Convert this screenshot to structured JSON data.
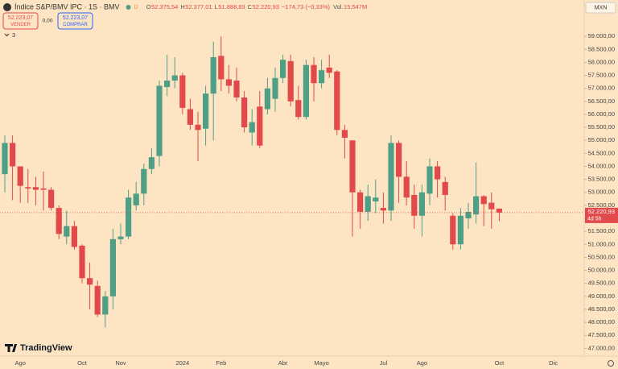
{
  "header": {
    "symbol": "Índice S&P/BMV IPC · 1S · BMV",
    "market_status": "D",
    "ohlc": [
      {
        "label": "O",
        "value": "52.375,54"
      },
      {
        "label": "H",
        "value": "52.377,01"
      },
      {
        "label": "L",
        "value": "51.888,83"
      },
      {
        "label": "C",
        "value": "52.220,93"
      }
    ],
    "change": "−174,73 (−0,33%)",
    "volume_label": "Vol.",
    "volume": "15,547M",
    "sell": {
      "price": "52.223,07",
      "label": "VENDER"
    },
    "spread": "0,00",
    "buy": {
      "price": "52.223,07",
      "label": "COMPRAR"
    },
    "indicators_count": "3",
    "currency": "MXN",
    "brand": "TradingView"
  },
  "chart_data": {
    "type": "candlestick",
    "up_color": "#4f9e86",
    "down_color": "#e2494b",
    "categories": [
      null,
      null,
      "Ago",
      null,
      null,
      null,
      null,
      null,
      null,
      null,
      "Oct",
      null,
      null,
      null,
      null,
      "Nov",
      null,
      null,
      null,
      null,
      null,
      null,
      null,
      "2024",
      null,
      null,
      null,
      null,
      "Feb",
      null,
      null,
      null,
      null,
      null,
      null,
      null,
      "Abr",
      null,
      null,
      null,
      null,
      "Mayo",
      null,
      null,
      null,
      null,
      null,
      null,
      null,
      "Jul",
      null,
      null,
      null,
      null,
      "Ago",
      null,
      null,
      null,
      null,
      null,
      null,
      null,
      null,
      null,
      "Oct",
      null,
      null,
      null,
      null,
      null,
      null,
      "Dic"
    ],
    "open": [
      53700,
      54900,
      54000,
      53200,
      53200,
      53150,
      53100,
      52400,
      51300,
      51700,
      50950,
      49700,
      49400,
      48300,
      49000,
      51200,
      51300,
      52500,
      52950,
      53900,
      54400,
      57050,
      57300,
      57500,
      56200,
      55600,
      55450,
      56800,
      58250,
      57350,
      57300,
      56650,
      55300,
      56300,
      56200,
      56600,
      57400,
      58050,
      56550,
      55900,
      57900,
      57200,
      57800,
      57650,
      55400,
      55000,
      53000,
      52250,
      52650,
      52400,
      52300,
      54900,
      53600,
      52900,
      52100,
      52950,
      54000,
      53400,
      52100,
      51000,
      52000,
      52150,
      52850,
      52600,
      52375.54,
      null,
      null,
      null,
      null,
      null,
      null,
      null
    ],
    "high": [
      55200,
      55200,
      54000,
      53900,
      53600,
      53800,
      53200,
      52500,
      52300,
      51900,
      51000,
      50300,
      49600,
      49200,
      51600,
      51800,
      53100,
      53400,
      54100,
      54700,
      57300,
      58300,
      58200,
      57600,
      56600,
      56100,
      57100,
      58800,
      59000,
      57900,
      57800,
      56900,
      56200,
      56900,
      57400,
      57800,
      58300,
      58300,
      57100,
      58100,
      58200,
      58100,
      58300,
      57700,
      55600,
      55000,
      53100,
      53300,
      53500,
      53000,
      55200,
      55000,
      54200,
      53300,
      53300,
      54300,
      54200,
      53600,
      52200,
      52400,
      52600,
      54150,
      52900,
      53000,
      52377.01,
      null,
      null,
      null,
      null,
      null,
      null,
      null
    ],
    "low": [
      53000,
      52700,
      52600,
      52600,
      52500,
      52300,
      52300,
      51200,
      51000,
      50800,
      49500,
      48500,
      48200,
      47800,
      48500,
      51000,
      51200,
      52300,
      52500,
      53700,
      54000,
      56700,
      57000,
      56000,
      55400,
      54200,
      54800,
      55000,
      56900,
      56800,
      56500,
      55300,
      54800,
      54700,
      56000,
      56100,
      57200,
      56300,
      55800,
      55800,
      56500,
      57000,
      57400,
      55200,
      54300,
      51300,
      51600,
      51900,
      52200,
      51800,
      51900,
      52600,
      52500,
      51600,
      51300,
      52500,
      52800,
      52300,
      50800,
      50800,
      51600,
      51800,
      51700,
      51600,
      51888.83,
      null,
      null,
      null,
      null,
      null,
      null,
      null
    ],
    "close": [
      54900,
      54000,
      53250,
      53150,
      53100,
      53100,
      52400,
      51400,
      51700,
      50900,
      49700,
      49450,
      48300,
      49000,
      51200,
      51300,
      52800,
      52950,
      53900,
      54350,
      57100,
      57300,
      57500,
      56250,
      55600,
      55400,
      56800,
      58200,
      57350,
      57100,
      56650,
      55500,
      55700,
      54800,
      57000,
      57400,
      58100,
      56500,
      55900,
      57900,
      57200,
      57700,
      57600,
      55400,
      55100,
      53000,
      52250,
      52850,
      52800,
      52300,
      54900,
      53600,
      52800,
      52100,
      53000,
      54000,
      53500,
      52900,
      51000,
      52100,
      52250,
      52850,
      52550,
      52350,
      52220.93,
      null,
      null,
      null,
      null,
      null,
      null,
      null
    ],
    "ylim": [
      46700,
      60400
    ],
    "yticks": [
      {
        "value": 47000,
        "label": "47.000,00"
      },
      {
        "value": 47500,
        "label": "47.500,00"
      },
      {
        "value": 48000,
        "label": "48.000,00"
      },
      {
        "value": 48500,
        "label": "48.500,00"
      },
      {
        "value": 49000,
        "label": "49.000,00"
      },
      {
        "value": 49500,
        "label": "49.500,00"
      },
      {
        "value": 50000,
        "label": "50.000,00"
      },
      {
        "value": 50500,
        "label": "50.500,00"
      },
      {
        "value": 51000,
        "label": "51.000,00"
      },
      {
        "value": 51500,
        "label": "51.500,00"
      },
      {
        "value": 52000,
        "label": "52.000,00"
      },
      {
        "value": 52500,
        "label": "52.500,00"
      },
      {
        "value": 53000,
        "label": "53.000,00"
      },
      {
        "value": 53500,
        "label": "53.500,00"
      },
      {
        "value": 54000,
        "label": "54.000,00"
      },
      {
        "value": 54500,
        "label": "54.500,00"
      },
      {
        "value": 55000,
        "label": "55.000,00"
      },
      {
        "value": 55500,
        "label": "55.500,00"
      },
      {
        "value": 56000,
        "label": "56.000,00"
      },
      {
        "value": 56500,
        "label": "56.500,00"
      },
      {
        "value": 57000,
        "label": "57.000,00"
      },
      {
        "value": 57500,
        "label": "57.500,00"
      },
      {
        "value": 58000,
        "label": "58.000,00"
      },
      {
        "value": 58500,
        "label": "58.500,00"
      },
      {
        "value": 59000,
        "label": "59.000,00"
      }
    ],
    "last_price": {
      "value": 52220.93,
      "label": "52.220,93",
      "countdown": "4d 5h"
    },
    "grid": false
  }
}
